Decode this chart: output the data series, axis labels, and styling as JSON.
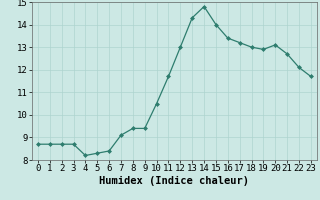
{
  "title": "",
  "xlabel": "Humidex (Indice chaleur)",
  "ylabel": "",
  "x_values": [
    0,
    1,
    2,
    3,
    4,
    5,
    6,
    7,
    8,
    9,
    10,
    11,
    12,
    13,
    14,
    15,
    16,
    17,
    18,
    19,
    20,
    21,
    22,
    23
  ],
  "y_values": [
    8.7,
    8.7,
    8.7,
    8.7,
    8.2,
    8.3,
    8.4,
    9.1,
    9.4,
    9.4,
    10.5,
    11.7,
    13.0,
    14.3,
    14.8,
    14.0,
    13.4,
    13.2,
    13.0,
    12.9,
    13.1,
    12.7,
    12.1,
    11.7
  ],
  "line_color": "#2e7d6e",
  "marker_color": "#2e7d6e",
  "bg_color": "#cce8e4",
  "grid_color": "#aed4cf",
  "ylim": [
    8,
    15
  ],
  "xlim": [
    -0.5,
    23.5
  ],
  "yticks": [
    8,
    9,
    10,
    11,
    12,
    13,
    14,
    15
  ],
  "xticks": [
    0,
    1,
    2,
    3,
    4,
    5,
    6,
    7,
    8,
    9,
    10,
    11,
    12,
    13,
    14,
    15,
    16,
    17,
    18,
    19,
    20,
    21,
    22,
    23
  ],
  "label_fontsize": 7.5,
  "tick_fontsize": 6.5
}
